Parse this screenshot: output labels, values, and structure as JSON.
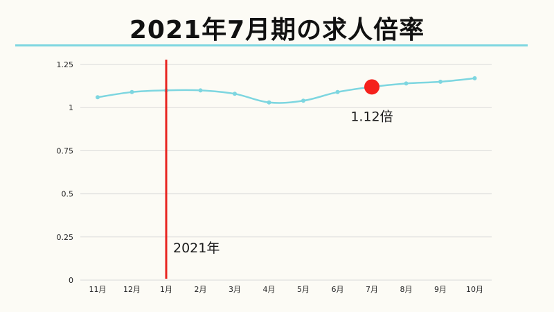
{
  "title": "2021年7月期の求人倍率",
  "colors": {
    "background": "#fcfbf5",
    "line": "#7dd6e0",
    "title_rule": "#7dd6e0",
    "marker_line": "#e8231f",
    "highlight_point": "#f5211c",
    "grid": "#d9d9d9"
  },
  "chart_data": {
    "type": "line",
    "title": "2021年7月期の求人倍率",
    "xlabel": "",
    "ylabel": "",
    "categories": [
      "11月",
      "12月",
      "1月",
      "2月",
      "3月",
      "4月",
      "5月",
      "6月",
      "7月",
      "8月",
      "9月",
      "10月"
    ],
    "series": [
      {
        "values": [
          1.06,
          1.09,
          1.1,
          1.1,
          1.08,
          1.03,
          1.04,
          1.09,
          1.12,
          1.14,
          1.15,
          1.17
        ]
      }
    ],
    "ylim": [
      0,
      1.25
    ],
    "yticks": [
      {
        "value": 0,
        "label": "0"
      },
      {
        "value": 0.25,
        "label": "0.25"
      },
      {
        "value": 0.5,
        "label": "0.5"
      },
      {
        "value": 0.75,
        "label": "0.75"
      },
      {
        "value": 1,
        "label": "1"
      },
      {
        "value": 1.25,
        "label": "1.25"
      }
    ],
    "grid": true,
    "legend": "none",
    "annotations": {
      "year_marker": {
        "category": "1月",
        "label": "2021年"
      },
      "highlight": {
        "category": "7月",
        "label": "1.12倍"
      }
    }
  }
}
